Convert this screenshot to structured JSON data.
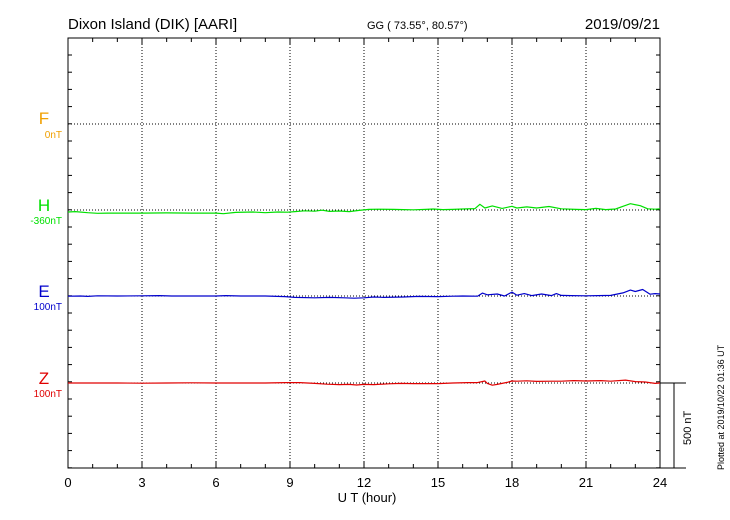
{
  "header": {
    "station": "Dixon Island (DIK)  [AARI]",
    "coords": "GG ( 73.55°,  80.57°)",
    "date": "2019/09/21"
  },
  "footer": {
    "plotted": "Plotted at 2019/10/22 01:36 UT",
    "scale_label": "500 nT"
  },
  "chart_data": {
    "type": "line",
    "xlabel": "U T (hour)",
    "ylabel": "",
    "xlim": [
      0,
      24
    ],
    "x_ticks": [
      "0",
      "3",
      "6",
      "9",
      "12",
      "15",
      "18",
      "21",
      "24"
    ],
    "grid": true,
    "scale_bar_nT": 500,
    "channels": [
      {
        "name": "F",
        "baseline_label": "0nT",
        "color": "#f0a000",
        "values": []
      },
      {
        "name": "H",
        "baseline_label": "-360nT",
        "color": "#00e000",
        "points": [
          [
            0,
            20
          ],
          [
            0.3,
            16
          ],
          [
            0.8,
            26
          ],
          [
            1.2,
            32
          ],
          [
            1.6,
            30
          ],
          [
            2,
            30
          ],
          [
            3,
            30
          ],
          [
            4,
            28
          ],
          [
            5,
            30
          ],
          [
            6,
            30
          ],
          [
            6.3,
            36
          ],
          [
            6.8,
            24
          ],
          [
            7.5,
            20
          ],
          [
            8,
            26
          ],
          [
            8.5,
            20
          ],
          [
            8.9,
            22
          ],
          [
            9.2,
            16
          ],
          [
            9.6,
            8
          ],
          [
            10,
            12
          ],
          [
            10.3,
            2
          ],
          [
            10.6,
            14
          ],
          [
            11,
            10
          ],
          [
            11.4,
            16
          ],
          [
            11.8,
            4
          ],
          [
            12.2,
            -6
          ],
          [
            12.6,
            -8
          ],
          [
            13.2,
            -6
          ],
          [
            13.6,
            -4
          ],
          [
            14,
            -2
          ],
          [
            14.5,
            -6
          ],
          [
            14.8,
            -10
          ],
          [
            15.2,
            -4
          ],
          [
            15.6,
            -6
          ],
          [
            16,
            -10
          ],
          [
            16.5,
            -14
          ],
          [
            16.7,
            -56
          ],
          [
            16.9,
            -20
          ],
          [
            17.2,
            -40
          ],
          [
            17.6,
            -16
          ],
          [
            18,
            -36
          ],
          [
            18.2,
            -20
          ],
          [
            18.6,
            -30
          ],
          [
            19,
            -20
          ],
          [
            19.5,
            -34
          ],
          [
            20,
            -12
          ],
          [
            20.6,
            -6
          ],
          [
            21,
            -4
          ],
          [
            21.4,
            -16
          ],
          [
            21.8,
            -4
          ],
          [
            22.2,
            -10
          ],
          [
            22.5,
            -36
          ],
          [
            22.8,
            -62
          ],
          [
            23.2,
            -42
          ],
          [
            23.5,
            -12
          ],
          [
            23.8,
            -8
          ],
          [
            24,
            -12
          ]
        ]
      },
      {
        "name": "E",
        "baseline_label": "100nT",
        "color": "#0000cc",
        "points": [
          [
            0,
            2
          ],
          [
            0.5,
            0
          ],
          [
            0.8,
            4
          ],
          [
            1.2,
            -2
          ],
          [
            2,
            0
          ],
          [
            3,
            -2
          ],
          [
            3.7,
            -4
          ],
          [
            4.2,
            0
          ],
          [
            5,
            0
          ],
          [
            6,
            0
          ],
          [
            6.4,
            -4
          ],
          [
            7,
            0
          ],
          [
            8,
            0
          ],
          [
            8.8,
            6
          ],
          [
            9.2,
            14
          ],
          [
            10,
            18
          ],
          [
            10.6,
            14
          ],
          [
            11.2,
            18
          ],
          [
            11.6,
            22
          ],
          [
            12,
            18
          ],
          [
            12.4,
            10
          ],
          [
            12.8,
            14
          ],
          [
            13.6,
            10
          ],
          [
            14.2,
            4
          ],
          [
            15,
            6
          ],
          [
            15.6,
            2
          ],
          [
            16,
            0
          ],
          [
            16.6,
            2
          ],
          [
            16.8,
            -28
          ],
          [
            17,
            -12
          ],
          [
            17.4,
            -20
          ],
          [
            17.7,
            0
          ],
          [
            18,
            -38
          ],
          [
            18.2,
            -8
          ],
          [
            18.5,
            -24
          ],
          [
            18.8,
            -4
          ],
          [
            19.2,
            -20
          ],
          [
            19.6,
            -4
          ],
          [
            19.8,
            -24
          ],
          [
            20,
            -6
          ],
          [
            20.4,
            -4
          ],
          [
            21,
            -2
          ],
          [
            21.5,
            -4
          ],
          [
            22,
            -6
          ],
          [
            22.5,
            -30
          ],
          [
            22.8,
            -58
          ],
          [
            23,
            -44
          ],
          [
            23.3,
            -64
          ],
          [
            23.6,
            -18
          ],
          [
            23.8,
            -24
          ],
          [
            24,
            -20
          ]
        ]
      },
      {
        "name": "Z",
        "baseline_label": "100nT",
        "color": "#e00000",
        "points": [
          [
            0,
            0
          ],
          [
            1,
            0
          ],
          [
            2,
            0
          ],
          [
            3,
            2
          ],
          [
            4,
            0
          ],
          [
            5,
            -2
          ],
          [
            6,
            0
          ],
          [
            7,
            0
          ],
          [
            8,
            0
          ],
          [
            8.8,
            -4
          ],
          [
            9.4,
            -4
          ],
          [
            10,
            4
          ],
          [
            10.5,
            12
          ],
          [
            11,
            16
          ],
          [
            11.4,
            14
          ],
          [
            11.7,
            20
          ],
          [
            12,
            14
          ],
          [
            12.4,
            16
          ],
          [
            13,
            8
          ],
          [
            13.5,
            4
          ],
          [
            14,
            6
          ],
          [
            15,
            6
          ],
          [
            15.6,
            0
          ],
          [
            16.2,
            -4
          ],
          [
            16.6,
            -4
          ],
          [
            16.9,
            -20
          ],
          [
            17,
            4
          ],
          [
            17.2,
            22
          ],
          [
            17.4,
            14
          ],
          [
            17.6,
            4
          ],
          [
            17.8,
            -6
          ],
          [
            18,
            -20
          ],
          [
            18.2,
            -18
          ],
          [
            18.6,
            -22
          ],
          [
            19,
            -16
          ],
          [
            19.6,
            -18
          ],
          [
            20,
            -18
          ],
          [
            20.5,
            -24
          ],
          [
            21,
            -20
          ],
          [
            21.6,
            -24
          ],
          [
            22,
            -18
          ],
          [
            22.6,
            -28
          ],
          [
            23,
            -14
          ],
          [
            23.4,
            -10
          ],
          [
            23.8,
            4
          ],
          [
            24,
            0
          ]
        ]
      }
    ]
  }
}
